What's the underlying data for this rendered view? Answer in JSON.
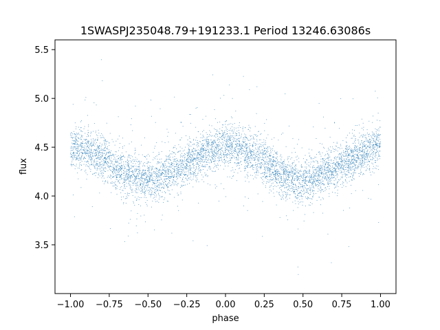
{
  "chart_data": {
    "type": "scatter",
    "title": "1SWASPJ235048.79+191233.1 Period 13246.63086s",
    "xlabel": "phase",
    "ylabel": "flux",
    "xlim": [
      -1.1,
      1.1
    ],
    "ylim": [
      3.0,
      5.6
    ],
    "xticks": [
      -1.0,
      -0.75,
      -0.5,
      -0.25,
      0.0,
      0.25,
      0.5,
      0.75,
      1.0
    ],
    "xtick_labels": [
      "−1.00",
      "−0.75",
      "−0.50",
      "−0.25",
      "0.00",
      "0.25",
      "0.50",
      "0.75",
      "1.00"
    ],
    "yticks": [
      3.5,
      4.0,
      4.5,
      5.0,
      5.5
    ],
    "ytick_labels": [
      "3.5",
      "4.0",
      "4.5",
      "5.0",
      "5.5"
    ],
    "grid": false,
    "marker_color": "#1f77b4",
    "series": [
      {
        "phase_range": [
          -1.0,
          1.0
        ],
        "point_count_estimate": 6000,
        "trend": {
          "phase": [
            -1.0,
            -0.9,
            -0.8,
            -0.7,
            -0.6,
            -0.5,
            -0.4,
            -0.3,
            -0.2,
            -0.1,
            0.0,
            0.1,
            0.2,
            0.3,
            0.4,
            0.5,
            0.6,
            0.7,
            0.8,
            0.9,
            1.0
          ],
          "flux": [
            4.5,
            4.48,
            4.4,
            4.28,
            4.2,
            4.17,
            4.2,
            4.28,
            4.38,
            4.46,
            4.52,
            4.48,
            4.4,
            4.28,
            4.18,
            4.16,
            4.2,
            4.28,
            4.36,
            4.45,
            4.52
          ]
        },
        "scatter_sigma": 0.11,
        "flux_range_observed": [
          3.1,
          5.45
        ]
      }
    ]
  }
}
